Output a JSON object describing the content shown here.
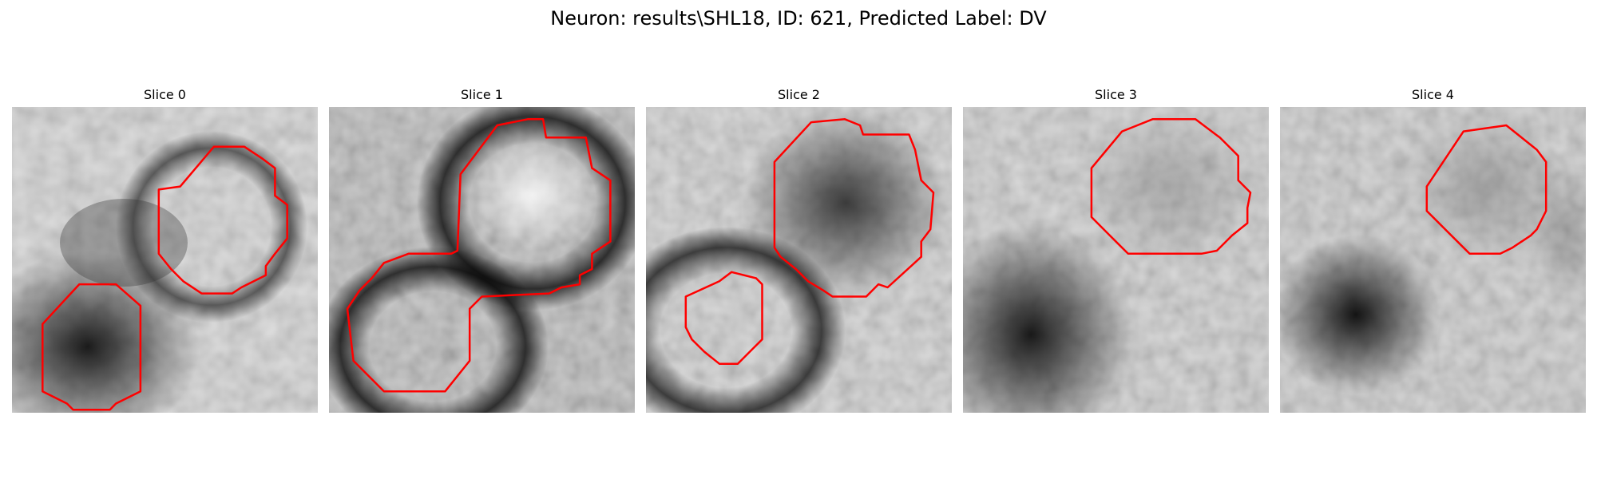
{
  "figure": {
    "title": "Neuron: results\\SHL18, ID: 621, Predicted Label: DV"
  },
  "panels": [
    {
      "title": "Slice 0",
      "contours": [
        [
          [
            0.55,
            0.26
          ],
          [
            0.66,
            0.13
          ],
          [
            0.76,
            0.13
          ],
          [
            0.82,
            0.17
          ],
          [
            0.86,
            0.2
          ],
          [
            0.86,
            0.29
          ],
          [
            0.9,
            0.32
          ],
          [
            0.9,
            0.43
          ],
          [
            0.86,
            0.48
          ],
          [
            0.83,
            0.52
          ],
          [
            0.83,
            0.55
          ],
          [
            0.75,
            0.59
          ],
          [
            0.72,
            0.61
          ],
          [
            0.62,
            0.61
          ],
          [
            0.56,
            0.57
          ],
          [
            0.52,
            0.53
          ],
          [
            0.48,
            0.48
          ],
          [
            0.48,
            0.27
          ]
        ],
        [
          [
            0.1,
            0.71
          ],
          [
            0.22,
            0.58
          ],
          [
            0.34,
            0.58
          ],
          [
            0.42,
            0.65
          ],
          [
            0.42,
            0.93
          ],
          [
            0.34,
            0.97
          ],
          [
            0.32,
            0.99
          ],
          [
            0.2,
            0.99
          ],
          [
            0.18,
            0.97
          ],
          [
            0.1,
            0.93
          ]
        ]
      ]
    },
    {
      "title": "Slice 1",
      "contours": [
        [
          [
            0.43,
            0.22
          ],
          [
            0.55,
            0.06
          ],
          [
            0.65,
            0.04
          ],
          [
            0.7,
            0.04
          ],
          [
            0.71,
            0.1
          ],
          [
            0.84,
            0.1
          ],
          [
            0.86,
            0.2
          ],
          [
            0.92,
            0.24
          ],
          [
            0.92,
            0.44
          ],
          [
            0.86,
            0.48
          ],
          [
            0.86,
            0.53
          ],
          [
            0.82,
            0.55
          ],
          [
            0.82,
            0.58
          ],
          [
            0.76,
            0.59
          ],
          [
            0.72,
            0.61
          ],
          [
            0.5,
            0.62
          ],
          [
            0.48,
            0.64
          ],
          [
            0.46,
            0.66
          ],
          [
            0.46,
            0.83
          ],
          [
            0.38,
            0.93
          ],
          [
            0.18,
            0.93
          ],
          [
            0.08,
            0.83
          ],
          [
            0.06,
            0.66
          ],
          [
            0.1,
            0.6
          ],
          [
            0.14,
            0.56
          ],
          [
            0.18,
            0.51
          ],
          [
            0.26,
            0.48
          ],
          [
            0.4,
            0.48
          ],
          [
            0.42,
            0.47
          ]
        ]
      ]
    },
    {
      "title": "Slice 2",
      "contours": [
        [
          [
            0.42,
            0.18
          ],
          [
            0.54,
            0.05
          ],
          [
            0.65,
            0.04
          ],
          [
            0.7,
            0.06
          ],
          [
            0.71,
            0.09
          ],
          [
            0.86,
            0.09
          ],
          [
            0.88,
            0.14
          ],
          [
            0.9,
            0.24
          ],
          [
            0.94,
            0.28
          ],
          [
            0.93,
            0.4
          ],
          [
            0.9,
            0.44
          ],
          [
            0.9,
            0.49
          ],
          [
            0.79,
            0.59
          ],
          [
            0.76,
            0.58
          ],
          [
            0.72,
            0.62
          ],
          [
            0.61,
            0.62
          ],
          [
            0.58,
            0.6
          ],
          [
            0.53,
            0.57
          ],
          [
            0.49,
            0.53
          ],
          [
            0.44,
            0.49
          ],
          [
            0.42,
            0.46
          ]
        ],
        [
          [
            0.13,
            0.62
          ],
          [
            0.24,
            0.57
          ],
          [
            0.28,
            0.54
          ],
          [
            0.36,
            0.56
          ],
          [
            0.38,
            0.58
          ],
          [
            0.38,
            0.76
          ],
          [
            0.34,
            0.8
          ],
          [
            0.3,
            0.84
          ],
          [
            0.24,
            0.84
          ],
          [
            0.19,
            0.8
          ],
          [
            0.15,
            0.76
          ],
          [
            0.13,
            0.72
          ]
        ]
      ]
    },
    {
      "title": "Slice 3",
      "contours": [
        [
          [
            0.42,
            0.2
          ],
          [
            0.52,
            0.08
          ],
          [
            0.62,
            0.04
          ],
          [
            0.76,
            0.04
          ],
          [
            0.84,
            0.1
          ],
          [
            0.9,
            0.16
          ],
          [
            0.9,
            0.24
          ],
          [
            0.94,
            0.28
          ],
          [
            0.93,
            0.33
          ],
          [
            0.93,
            0.38
          ],
          [
            0.88,
            0.42
          ],
          [
            0.86,
            0.44
          ],
          [
            0.83,
            0.47
          ],
          [
            0.78,
            0.48
          ],
          [
            0.54,
            0.48
          ],
          [
            0.48,
            0.42
          ],
          [
            0.42,
            0.36
          ]
        ]
      ]
    },
    {
      "title": "Slice 4",
      "contours": [
        [
          [
            0.48,
            0.26
          ],
          [
            0.6,
            0.08
          ],
          [
            0.74,
            0.06
          ],
          [
            0.84,
            0.14
          ],
          [
            0.87,
            0.18
          ],
          [
            0.87,
            0.34
          ],
          [
            0.84,
            0.4
          ],
          [
            0.82,
            0.42
          ],
          [
            0.76,
            0.46
          ],
          [
            0.72,
            0.48
          ],
          [
            0.62,
            0.48
          ],
          [
            0.56,
            0.42
          ],
          [
            0.5,
            0.36
          ],
          [
            0.48,
            0.34
          ]
        ]
      ]
    }
  ]
}
